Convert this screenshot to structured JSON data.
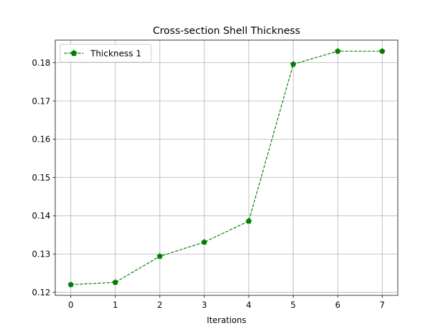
{
  "chart_data": {
    "type": "line",
    "title": "Cross-section Shell Thickness",
    "xlabel": "Iterations",
    "ylabel": "",
    "x": [
      0,
      1,
      2,
      3,
      4,
      5,
      6,
      7
    ],
    "series": [
      {
        "name": "Thickness 1",
        "values": [
          0.122,
          0.1226,
          0.1294,
          0.1331,
          0.1386,
          0.1796,
          0.183,
          0.183
        ],
        "color": "#008000",
        "line_style": "dashed",
        "marker": "pentagon"
      }
    ],
    "xlim": [
      -0.35,
      7.35
    ],
    "ylim": [
      0.1192,
      0.1859
    ],
    "x_ticks": [
      "0",
      "1",
      "2",
      "3",
      "4",
      "5",
      "6",
      "7"
    ],
    "y_ticks": [
      "0.12",
      "0.13",
      "0.14",
      "0.15",
      "0.16",
      "0.17",
      "0.18"
    ],
    "grid": true,
    "legend_position": "top-left"
  }
}
